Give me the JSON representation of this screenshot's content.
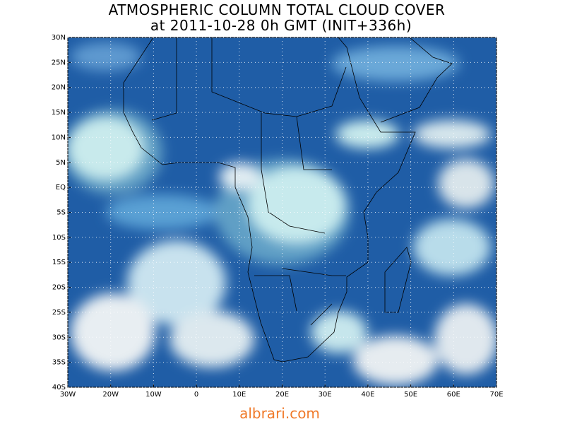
{
  "map": {
    "title": "ATMOSPHERIC COLUMN TOTAL CLOUD COVER",
    "subtitle": "at 2011-10-28 0h GMT (INIT+336h)",
    "lonlim": [
      -30,
      70
    ],
    "latlim": [
      -40,
      30
    ],
    "lonticks": [
      {
        "value": -30,
        "label": "30W"
      },
      {
        "value": -20,
        "label": "20W"
      },
      {
        "value": -10,
        "label": "10W"
      },
      0,
      {
        "value": 10,
        "label": "10E"
      },
      {
        "value": 20,
        "label": "20E"
      },
      {
        "value": 30,
        "label": "30E"
      },
      {
        "value": 40,
        "label": "40E"
      },
      {
        "value": 50,
        "label": "50E"
      },
      {
        "value": 60,
        "label": "60E"
      },
      {
        "value": 70,
        "label": "70E"
      }
    ],
    "latticks": [
      {
        "value": 30,
        "label": "30N"
      },
      {
        "value": 25,
        "label": "25N"
      },
      {
        "value": 20,
        "label": "20N"
      },
      {
        "value": 15,
        "label": "15N"
      },
      {
        "value": 10,
        "label": "10N"
      },
      {
        "value": 5,
        "label": "5N"
      },
      {
        "value": 0,
        "label": "EQ"
      },
      {
        "value": -5,
        "label": "5S"
      },
      {
        "value": -10,
        "label": "10S"
      },
      {
        "value": -15,
        "label": "15S"
      },
      {
        "value": -20,
        "label": "20S"
      },
      {
        "value": -25,
        "label": "25S"
      },
      {
        "value": -30,
        "label": "30S"
      },
      {
        "value": -35,
        "label": "35S"
      },
      {
        "value": -40,
        "label": "40S"
      }
    ],
    "grid": true,
    "footer": "albrari.com"
  }
}
